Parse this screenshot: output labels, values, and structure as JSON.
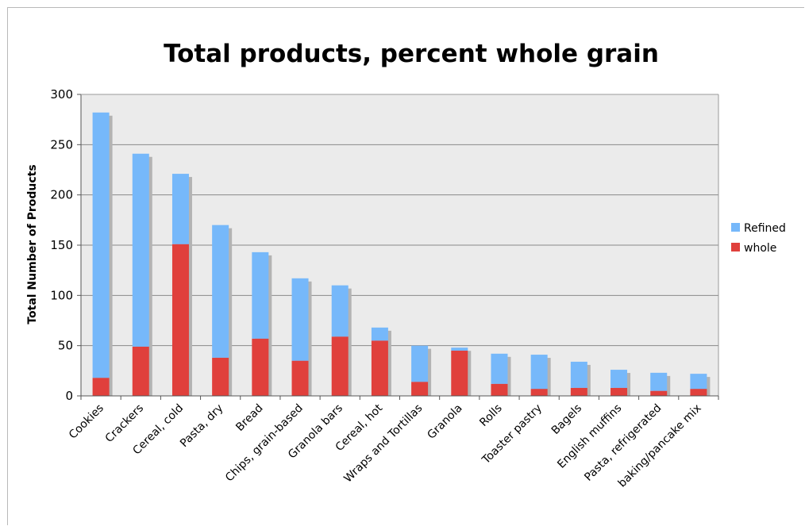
{
  "chart_data": {
    "type": "bar",
    "stacked": true,
    "title": "Total products, percent whole grain",
    "xlabel": "",
    "ylabel": "Total Number of Products",
    "ylim": [
      0,
      300
    ],
    "yticks": [
      "0",
      "50",
      "100",
      "150",
      "200",
      "250",
      "300"
    ],
    "grid": true,
    "legend_position": "right",
    "categories": [
      "Cookies",
      "Crackers",
      "Cereal, cold",
      "Pasta, dry",
      "Bread",
      "Chips, grain-based",
      "Granola bars",
      "Cereal, hot",
      "Wraps and Tortillas",
      "Granola",
      "Rolls",
      "Toaster pastry",
      "Bagels",
      "English muffins",
      "Pasta, refrigerated",
      "baking/pancake mix"
    ],
    "series": [
      {
        "name": "whole",
        "color": "#e0403c",
        "values": [
          18,
          49,
          151,
          38,
          57,
          35,
          59,
          55,
          14,
          45,
          12,
          7,
          8,
          8,
          5,
          7
        ]
      },
      {
        "name": "Refined",
        "color": "#76b8fa",
        "values": [
          264,
          192,
          70,
          132,
          86,
          82,
          51,
          13,
          36,
          3,
          30,
          34,
          26,
          18,
          18,
          15
        ]
      }
    ],
    "legend": [
      "Refined",
      "whole"
    ],
    "plot_background": "#ebebeb",
    "shadow_color": "#b3b3b3"
  }
}
